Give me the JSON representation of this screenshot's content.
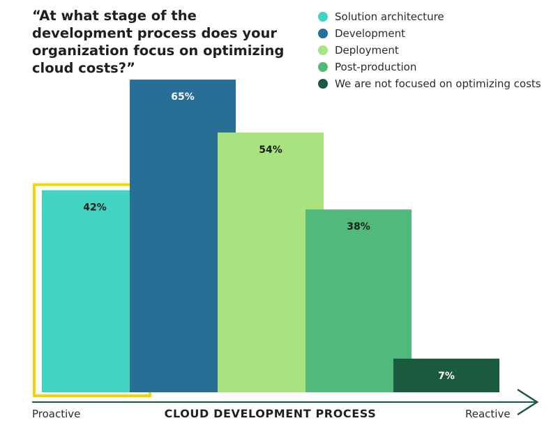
{
  "title": "“At what stage of the development process does your organization focus on optimizing cloud costs?”",
  "chart_data": {
    "type": "bar",
    "categories": [
      "Solution architecture",
      "Development",
      "Deployment",
      "Post-production",
      "We are not focused on optimizing costs"
    ],
    "values": [
      42,
      65,
      54,
      38,
      7
    ],
    "labels": [
      "42%",
      "65%",
      "54%",
      "38%",
      "7%"
    ],
    "colors": [
      "#42d3c2",
      "#276f96",
      "#a9e37f",
      "#52b97c",
      "#1a5a3e"
    ],
    "label_colors": [
      "#1d1d1b",
      "#ffffff",
      "#1d1d1b",
      "#1d1d1b",
      "#ffffff"
    ],
    "highlight_color": "#f2d600",
    "highlighted_category": "Solution architecture",
    "xlabel": "CLOUD DEVELOPMENT PROCESS",
    "x_start_label": "Proactive",
    "x_end_label": "Reactive",
    "ylim": [
      0,
      65
    ],
    "legend_position": "top-right",
    "grid": false
  },
  "legend": [
    {
      "label": "Solution architecture",
      "color": "#42d3c2"
    },
    {
      "label": "Development",
      "color": "#276f96"
    },
    {
      "label": "Deployment",
      "color": "#a9e37f"
    },
    {
      "label": "Post-production",
      "color": "#52b97c"
    },
    {
      "label": "We are not focused on optimizing costs",
      "color": "#1a5a3e"
    }
  ],
  "axis_arrow_color": "#1a5a3e"
}
